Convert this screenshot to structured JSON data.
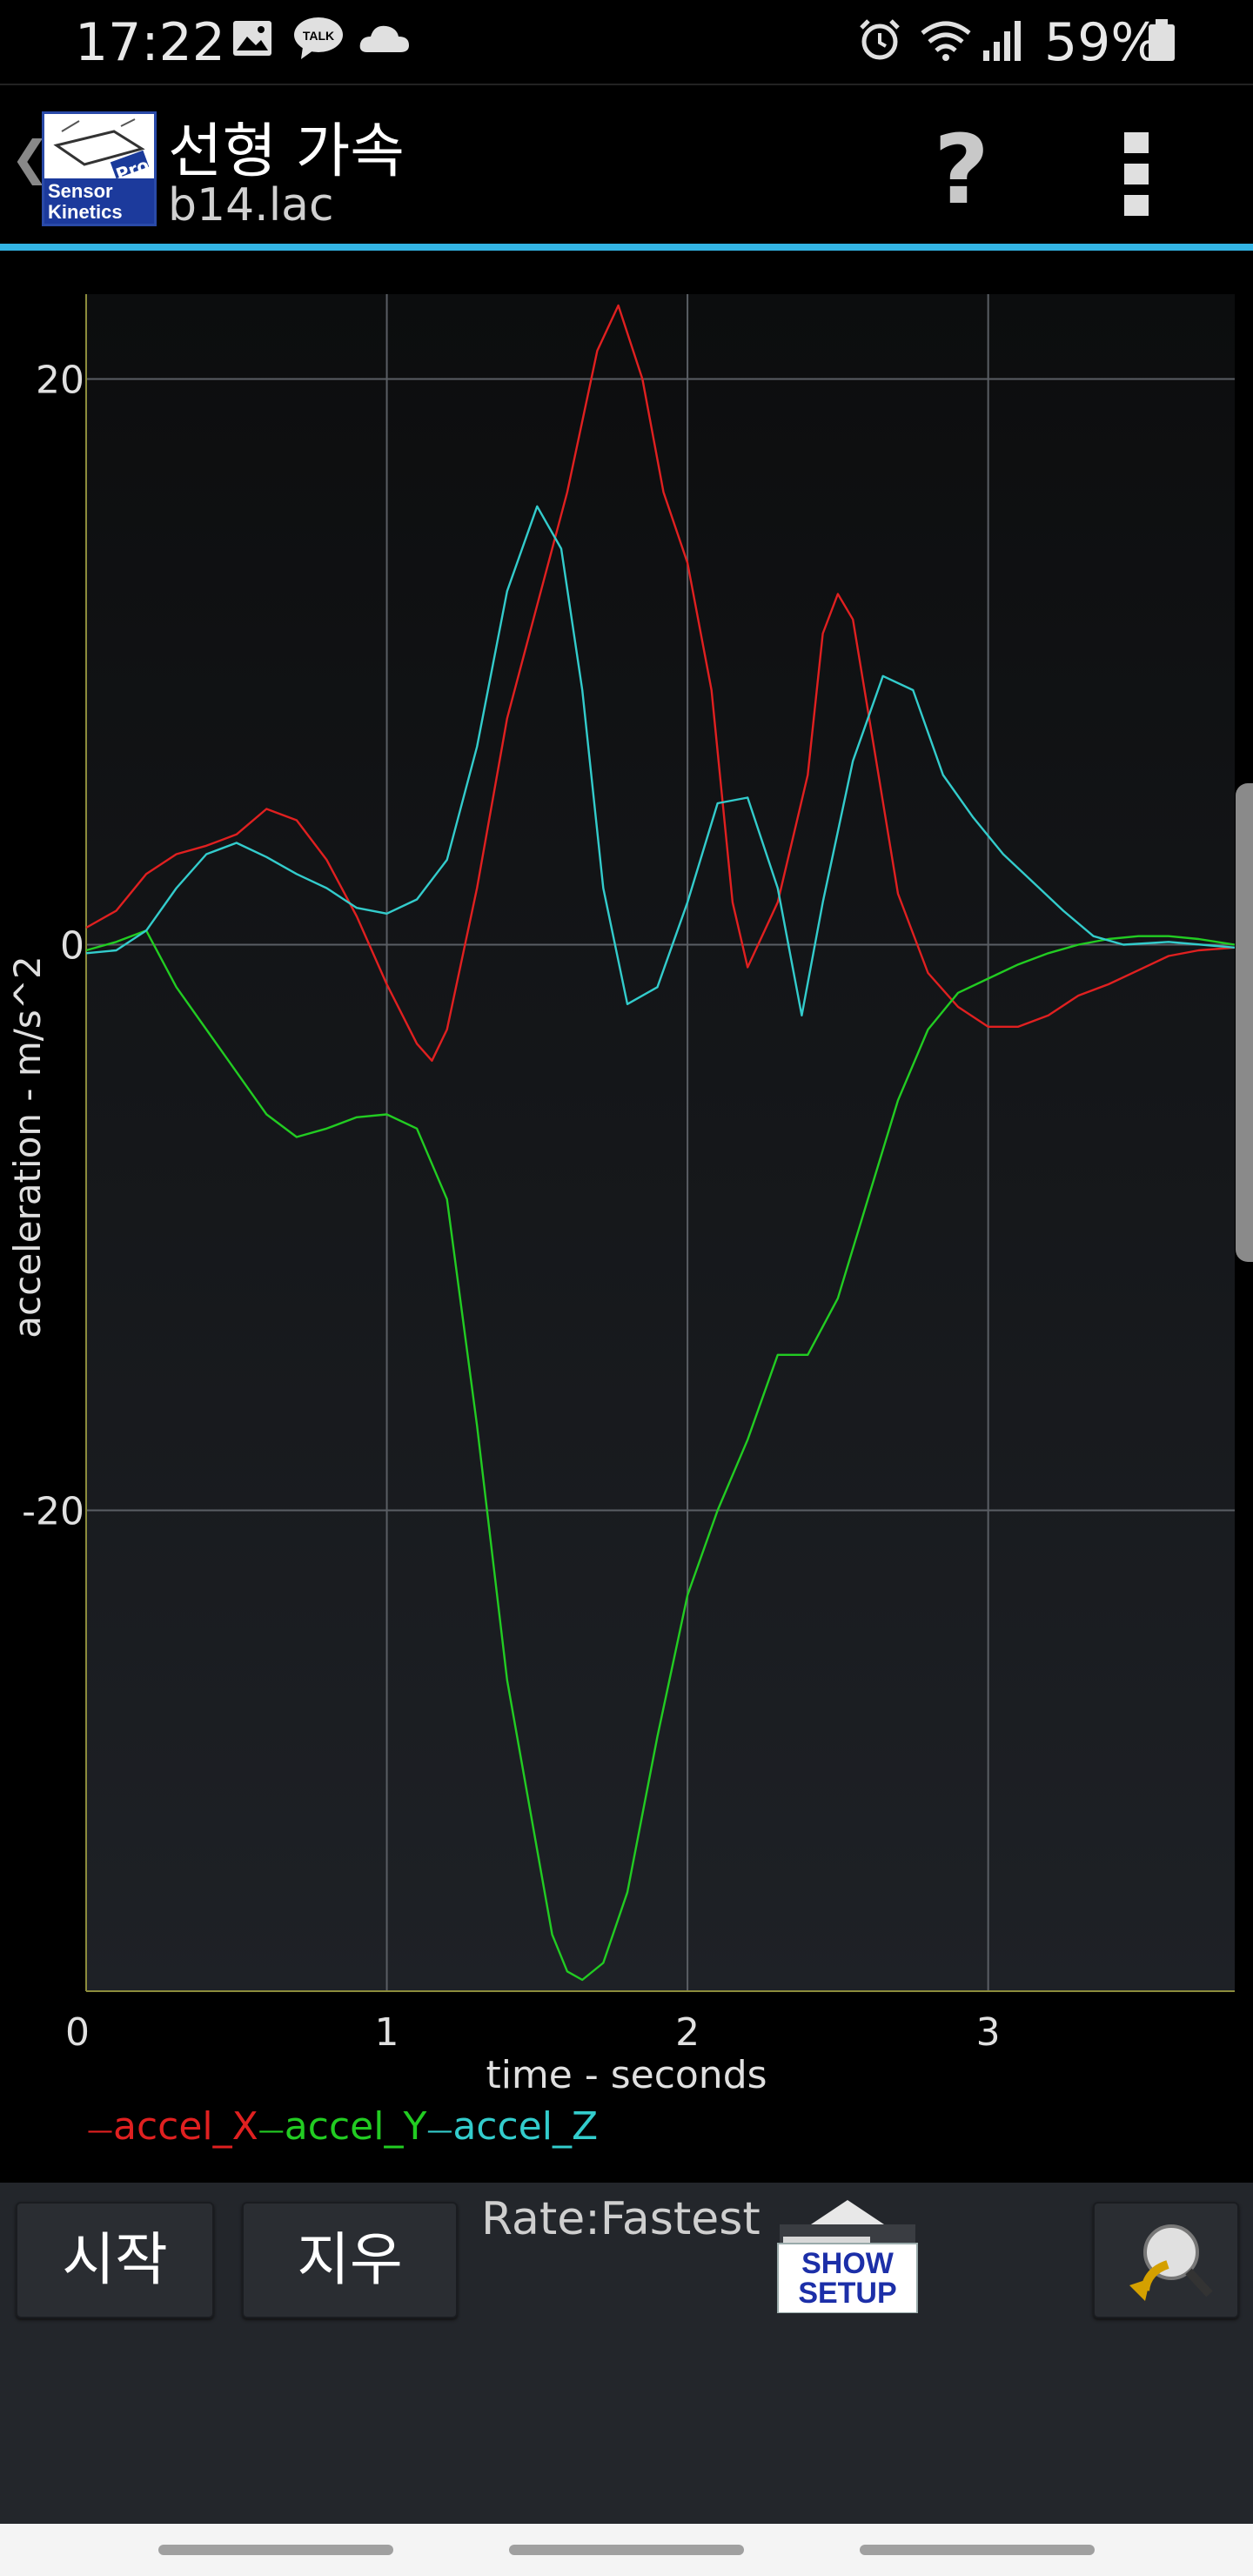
{
  "status_bar": {
    "time": "17:22",
    "battery_percent": "59%",
    "icons": [
      "image-icon",
      "kakaotalk-icon",
      "cloud-icon",
      "alarm-icon",
      "wifi-icon",
      "signal-icon",
      "battery-icon"
    ],
    "talk_badge": "TALK"
  },
  "action_bar": {
    "back_glyph": "❮",
    "logo_text": {
      "line1": "Sensor",
      "line2": "Kinetics",
      "badge": "Pro"
    },
    "title": "선형 가속",
    "subtitle": "b14.lac",
    "help_label": "?"
  },
  "chart_data": {
    "type": "line",
    "title": "",
    "xlabel": "time - seconds",
    "ylabel": "acceleration - m/s^2",
    "xlim": [
      0,
      3.82
    ],
    "ylim": [
      -37,
      23
    ],
    "x_ticks": [
      0,
      1,
      2,
      3
    ],
    "y_ticks": [
      20,
      0,
      -20
    ],
    "x_tick_labels": [
      "0",
      "1",
      "2",
      "3"
    ],
    "y_tick_labels": [
      "20",
      "0",
      "-20"
    ],
    "grid": true,
    "legend_position": "bottom-left",
    "series": [
      {
        "name": "accel_X",
        "color": "#e02020",
        "points": [
          [
            0,
            0.6
          ],
          [
            0.1,
            1.2
          ],
          [
            0.2,
            2.5
          ],
          [
            0.3,
            3.2
          ],
          [
            0.4,
            3.5
          ],
          [
            0.5,
            3.9
          ],
          [
            0.6,
            4.8
          ],
          [
            0.7,
            4.4
          ],
          [
            0.8,
            3.0
          ],
          [
            0.9,
            1.0
          ],
          [
            1.0,
            -1.4
          ],
          [
            1.1,
            -3.5
          ],
          [
            1.15,
            -4.1
          ],
          [
            1.2,
            -3.0
          ],
          [
            1.3,
            2.0
          ],
          [
            1.4,
            8.0
          ],
          [
            1.5,
            12.0
          ],
          [
            1.6,
            16.0
          ],
          [
            1.7,
            21.0
          ],
          [
            1.77,
            22.6
          ],
          [
            1.85,
            20.0
          ],
          [
            1.92,
            16.0
          ],
          [
            2.0,
            13.5
          ],
          [
            2.08,
            9.0
          ],
          [
            2.15,
            1.5
          ],
          [
            2.2,
            -0.8
          ],
          [
            2.3,
            1.5
          ],
          [
            2.4,
            6.0
          ],
          [
            2.45,
            11.0
          ],
          [
            2.5,
            12.4
          ],
          [
            2.55,
            11.5
          ],
          [
            2.62,
            7.0
          ],
          [
            2.7,
            1.8
          ],
          [
            2.8,
            -1.0
          ],
          [
            2.9,
            -2.2
          ],
          [
            3.0,
            -2.9
          ],
          [
            3.1,
            -2.9
          ],
          [
            3.2,
            -2.5
          ],
          [
            3.3,
            -1.8
          ],
          [
            3.4,
            -1.4
          ],
          [
            3.5,
            -0.9
          ],
          [
            3.6,
            -0.4
          ],
          [
            3.7,
            -0.2
          ],
          [
            3.82,
            -0.1
          ]
        ]
      },
      {
        "name": "accel_Y",
        "color": "#22cc22",
        "points": [
          [
            0,
            -0.2
          ],
          [
            0.1,
            0.1
          ],
          [
            0.2,
            0.5
          ],
          [
            0.3,
            -1.5
          ],
          [
            0.4,
            -3.0
          ],
          [
            0.5,
            -4.5
          ],
          [
            0.6,
            -6.0
          ],
          [
            0.7,
            -6.8
          ],
          [
            0.8,
            -6.5
          ],
          [
            0.9,
            -6.1
          ],
          [
            1.0,
            -6.0
          ],
          [
            1.1,
            -6.5
          ],
          [
            1.2,
            -9.0
          ],
          [
            1.3,
            -17.0
          ],
          [
            1.4,
            -26.0
          ],
          [
            1.5,
            -32.0
          ],
          [
            1.55,
            -35.0
          ],
          [
            1.6,
            -36.3
          ],
          [
            1.65,
            -36.6
          ],
          [
            1.72,
            -36.0
          ],
          [
            1.8,
            -33.5
          ],
          [
            1.9,
            -28.0
          ],
          [
            2.0,
            -23.0
          ],
          [
            2.1,
            -20.0
          ],
          [
            2.2,
            -17.5
          ],
          [
            2.3,
            -14.5
          ],
          [
            2.4,
            -14.5
          ],
          [
            2.5,
            -12.5
          ],
          [
            2.6,
            -9.0
          ],
          [
            2.7,
            -5.5
          ],
          [
            2.8,
            -3.0
          ],
          [
            2.9,
            -1.7
          ],
          [
            3.0,
            -1.2
          ],
          [
            3.1,
            -0.7
          ],
          [
            3.2,
            -0.3
          ],
          [
            3.3,
            0.0
          ],
          [
            3.4,
            0.2
          ],
          [
            3.5,
            0.3
          ],
          [
            3.6,
            0.3
          ],
          [
            3.7,
            0.2
          ],
          [
            3.82,
            0.0
          ]
        ]
      },
      {
        "name": "accel_Z",
        "color": "#33cccc",
        "points": [
          [
            0,
            -0.3
          ],
          [
            0.1,
            -0.2
          ],
          [
            0.2,
            0.5
          ],
          [
            0.3,
            2.0
          ],
          [
            0.4,
            3.2
          ],
          [
            0.5,
            3.6
          ],
          [
            0.6,
            3.1
          ],
          [
            0.7,
            2.5
          ],
          [
            0.8,
            2.0
          ],
          [
            0.9,
            1.3
          ],
          [
            1.0,
            1.1
          ],
          [
            1.1,
            1.6
          ],
          [
            1.2,
            3.0
          ],
          [
            1.3,
            7.0
          ],
          [
            1.4,
            12.5
          ],
          [
            1.5,
            15.5
          ],
          [
            1.58,
            14.0
          ],
          [
            1.65,
            9.0
          ],
          [
            1.72,
            2.0
          ],
          [
            1.8,
            -2.1
          ],
          [
            1.9,
            -1.5
          ],
          [
            2.0,
            1.5
          ],
          [
            2.1,
            5.0
          ],
          [
            2.2,
            5.2
          ],
          [
            2.3,
            2.0
          ],
          [
            2.38,
            -2.5
          ],
          [
            2.45,
            1.5
          ],
          [
            2.55,
            6.5
          ],
          [
            2.65,
            9.5
          ],
          [
            2.75,
            9.0
          ],
          [
            2.85,
            6.0
          ],
          [
            2.95,
            4.5
          ],
          [
            3.05,
            3.2
          ],
          [
            3.15,
            2.2
          ],
          [
            3.25,
            1.2
          ],
          [
            3.35,
            0.3
          ],
          [
            3.45,
            0.0
          ],
          [
            3.6,
            0.1
          ],
          [
            3.82,
            -0.1
          ]
        ]
      }
    ]
  },
  "toolbar": {
    "start_label": "시작",
    "clear_label": "지우",
    "rate_label": "Rate:Fastest",
    "show_setup_line1": "SHOW",
    "show_setup_line2": "SETUP",
    "undo_icon": "undo-magnifier-icon"
  }
}
